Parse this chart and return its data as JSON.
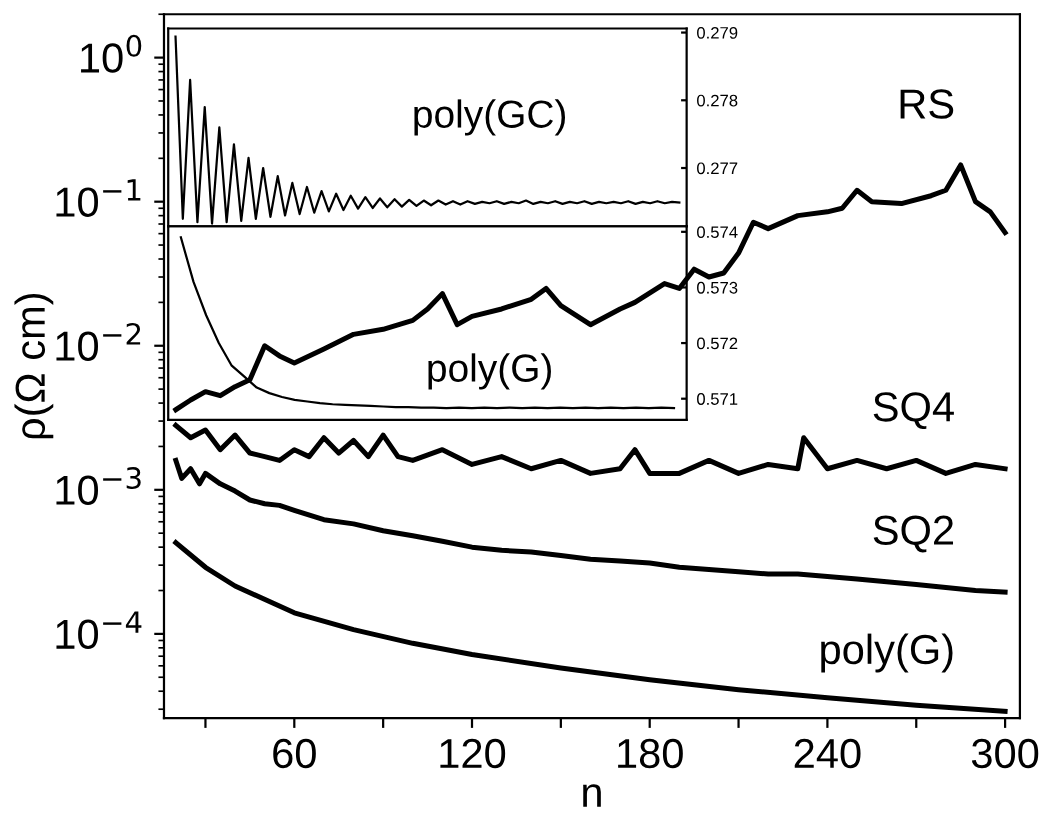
{
  "chart_data": [
    {
      "type": "line",
      "xlabel": "n",
      "ylabel": "ρ(Ω cm)",
      "log": "y",
      "grid": false,
      "legend": false,
      "marker": "none",
      "line_style": "solid",
      "xlim": [
        16,
        305
      ],
      "xticks": [
        {
          "value": 30,
          "label": null
        },
        60,
        {
          "value": 90,
          "label": null
        },
        120,
        {
          "value": 150,
          "label": null
        },
        180,
        {
          "value": 210,
          "label": null
        },
        240,
        {
          "value": 270,
          "label": null
        },
        300
      ],
      "ylim": [
        2.6e-05,
        2
      ],
      "yticks": [
        {
          "value": 0.0001,
          "label": "10$^{−4}$"
        },
        {
          "value": 0.001,
          "label": "10$^{−3}$"
        },
        {
          "value": 0.01,
          "label": "10$^{−2}$"
        },
        {
          "value": 0.1,
          "label": "10$^{−1}$"
        },
        {
          "value": 1,
          "label": "10$^{0}$"
        }
      ],
      "series": [
        {
          "name": "RS",
          "color": "#000000",
          "x": [
            20,
            25,
            30,
            35,
            40,
            45,
            50,
            55,
            60,
            70,
            80,
            90,
            100,
            105,
            110,
            115,
            120,
            130,
            140,
            145,
            150,
            160,
            170,
            175,
            185,
            190,
            195,
            200,
            205,
            210,
            215,
            220,
            230,
            240,
            245,
            250,
            255,
            265,
            275,
            280,
            285,
            290,
            295,
            300
          ],
          "values": [
            0.0036,
            0.0042,
            0.0048,
            0.0045,
            0.0052,
            0.0058,
            0.01,
            0.0085,
            0.0076,
            0.0095,
            0.012,
            0.013,
            0.015,
            0.018,
            0.023,
            0.014,
            0.016,
            0.018,
            0.021,
            0.025,
            0.019,
            0.014,
            0.018,
            0.02,
            0.027,
            0.025,
            0.034,
            0.03,
            0.032,
            0.044,
            0.072,
            0.065,
            0.08,
            0.085,
            0.09,
            0.12,
            0.1,
            0.097,
            0.11,
            0.12,
            0.18,
            0.1,
            0.085,
            0.061
          ]
        },
        {
          "name": "SQ4",
          "color": "#000000",
          "x": [
            20,
            25,
            30,
            35,
            40,
            45,
            50,
            55,
            60,
            65,
            70,
            75,
            80,
            85,
            90,
            95,
            100,
            110,
            120,
            130,
            140,
            150,
            160,
            170,
            175,
            180,
            190,
            200,
            210,
            220,
            230,
            232,
            240,
            250,
            260,
            270,
            280,
            290,
            300
          ],
          "values": [
            0.0028,
            0.0023,
            0.0026,
            0.0019,
            0.0024,
            0.0018,
            0.0017,
            0.0016,
            0.0019,
            0.0017,
            0.0023,
            0.0018,
            0.0022,
            0.0017,
            0.0024,
            0.0017,
            0.0016,
            0.0019,
            0.0015,
            0.0017,
            0.0014,
            0.0016,
            0.0013,
            0.0014,
            0.0019,
            0.0013,
            0.0013,
            0.0016,
            0.0013,
            0.0015,
            0.0014,
            0.0023,
            0.0014,
            0.0016,
            0.0014,
            0.0016,
            0.0013,
            0.0015,
            0.0014
          ]
        },
        {
          "name": "SQ2",
          "color": "#000000",
          "x": [
            20,
            22,
            25,
            28,
            30,
            35,
            40,
            45,
            50,
            55,
            60,
            70,
            80,
            90,
            100,
            110,
            120,
            130,
            140,
            150,
            160,
            170,
            180,
            190,
            200,
            210,
            220,
            230,
            240,
            250,
            260,
            270,
            280,
            290,
            300
          ],
          "values": [
            0.0016,
            0.0012,
            0.0014,
            0.0011,
            0.0013,
            0.0011,
            0.00098,
            0.00085,
            0.0008,
            0.00078,
            0.00072,
            0.00062,
            0.00058,
            0.00052,
            0.00048,
            0.00044,
            0.0004,
            0.00038,
            0.00037,
            0.00035,
            0.00033,
            0.00032,
            0.00031,
            0.00029,
            0.00028,
            0.00027,
            0.00026,
            0.00026,
            0.00025,
            0.00024,
            0.00023,
            0.00022,
            0.00021,
            0.0002,
            0.000195
          ]
        },
        {
          "name": "poly(G)",
          "color": "#000000",
          "x": [
            20,
            30,
            40,
            60,
            80,
            100,
            120,
            150,
            180,
            210,
            240,
            270,
            300
          ],
          "values": [
            0.00043,
            0.00029,
            0.000215,
            0.00014,
            0.000107,
            8.6e-05,
            7.2e-05,
            5.8e-05,
            4.8e-05,
            4.1e-05,
            3.6e-05,
            3.2e-05,
            2.9e-05
          ]
        }
      ]
    },
    {
      "type": "line",
      "grid": false,
      "legend": false,
      "tick_labels": "y",
      "categories": [
        null,
        null,
        null,
        null,
        null,
        null,
        null,
        null,
        null,
        null,
        null,
        null,
        null,
        null,
        null,
        null,
        null,
        null,
        null,
        null,
        null,
        null,
        null,
        null,
        null,
        null,
        null,
        null,
        null,
        null,
        null,
        null,
        null,
        null,
        null,
        null,
        null,
        null,
        null,
        null,
        null,
        null,
        null,
        null,
        null,
        null,
        null,
        null,
        null,
        null,
        null,
        null,
        null,
        null,
        null,
        null,
        null,
        null,
        null,
        null,
        null,
        null,
        null,
        null,
        null,
        null,
        null,
        null,
        null,
        null
      ],
      "ylim": [
        0.27614,
        0.27906
      ],
      "yticks": [
        0.277,
        0.278,
        0.279
      ],
      "series": [
        {
          "name": "poly(GC)",
          "color": "#000000",
          "values": [
            0.27894,
            0.27625,
            0.2783,
            0.2762,
            0.2779,
            0.27618,
            0.2776,
            0.2762,
            0.27735,
            0.27622,
            0.27715,
            0.27625,
            0.277,
            0.27628,
            0.27688,
            0.2763,
            0.27678,
            0.27632,
            0.27672,
            0.27634,
            0.27666,
            0.27636,
            0.27662,
            0.27638,
            0.27659,
            0.2764,
            0.27657,
            0.27641,
            0.27655,
            0.27642,
            0.27654,
            0.27643,
            0.27653,
            0.27644,
            0.27652,
            0.27645,
            0.27652,
            0.27646,
            0.27651,
            0.27646,
            0.27651,
            0.27647,
            0.2765,
            0.27648,
            0.27651,
            0.27647,
            0.2765,
            0.27648,
            0.27652,
            0.27647,
            0.2765,
            0.27648,
            0.27651,
            0.27647,
            0.2765,
            0.27648,
            0.27651,
            0.27647,
            0.2765,
            0.27648,
            0.2765,
            0.27648,
            0.27651,
            0.27647,
            0.2765,
            0.27648,
            0.27651,
            0.27648,
            0.2765,
            0.27649
          ]
        }
      ]
    },
    {
      "type": "line",
      "grid": false,
      "legend": false,
      "tick_labels": "y",
      "categories": [
        null,
        null,
        null,
        null,
        null,
        null,
        null,
        null,
        null,
        null,
        null,
        null,
        null,
        null,
        null,
        null,
        null,
        null,
        null,
        null,
        null,
        null,
        null,
        null,
        null,
        null,
        null,
        null,
        null,
        null,
        null,
        null,
        null,
        null,
        null,
        null,
        null,
        null,
        null,
        null
      ],
      "ylim": [
        0.57062,
        0.5741
      ],
      "yticks": [
        0.571,
        0.572,
        0.573,
        0.574
      ],
      "series": [
        {
          "name": "poly(G)",
          "color": "#000000",
          "values": [
            0.5739,
            0.5731,
            0.5725,
            0.572,
            0.5716,
            0.5714,
            0.5712,
            0.5711,
            0.57103,
            0.57098,
            0.57095,
            0.57092,
            0.5709,
            0.57089,
            0.57088,
            0.57087,
            0.57086,
            0.57085,
            0.57085,
            0.57084,
            0.57084,
            0.57083,
            0.57084,
            0.57083,
            0.57084,
            0.57083,
            0.57084,
            0.57083,
            0.57084,
            0.57083,
            0.57084,
            0.57083,
            0.57084,
            0.57083,
            0.57084,
            0.57083,
            0.57084,
            0.57083,
            0.57084,
            0.57083
          ]
        }
      ]
    }
  ]
}
